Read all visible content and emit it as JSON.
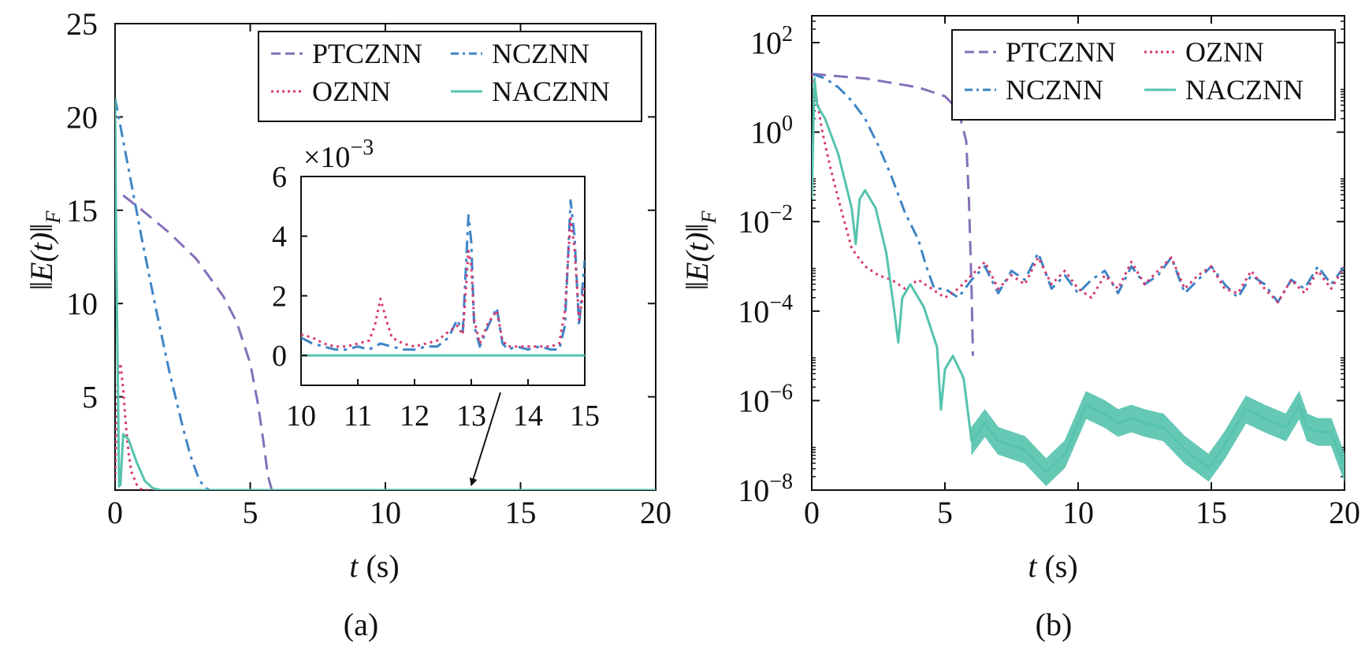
{
  "colors": {
    "PTCZNN": "#8470b8",
    "NCZNN": "#3e84c6",
    "OZNN": "#d63a6e",
    "NACZNN": "#55c3ae",
    "axis": "#111111"
  },
  "chart_data": [
    {
      "panel": "(a)",
      "type": "line",
      "xlabel_italic": "t",
      "xlabel_unit": "(s)",
      "ylabel_inner": "E(t)",
      "ylabel_sub": "F",
      "xlim": [
        0,
        20
      ],
      "ylim": [
        0,
        25
      ],
      "yscale": "linear",
      "xticks": [
        "0",
        "5",
        "10",
        "15",
        "20"
      ],
      "yticks": [
        "5",
        "10",
        "15",
        "20",
        "25"
      ],
      "legend": [
        "PTCZNN",
        "NCZNN",
        "OZNN",
        "NACZNN"
      ],
      "legend_position": "top-right",
      "series": [
        {
          "name": "PTCZNN",
          "style": "dashed",
          "x": [
            0.3,
            1,
            2,
            3,
            4,
            4.5,
            5,
            5.3,
            5.5,
            5.65,
            5.8,
            20
          ],
          "y": [
            15.8,
            15.0,
            13.8,
            12.4,
            10.4,
            9.0,
            6.8,
            4.5,
            2.5,
            0.8,
            0,
            0
          ]
        },
        {
          "name": "NCZNN",
          "style": "dash-dot",
          "x": [
            0,
            0.5,
            1,
            1.5,
            2,
            2.5,
            2.8,
            3.1,
            3.3,
            3.5,
            20
          ],
          "y": [
            21.0,
            17.2,
            13.4,
            9.8,
            6.4,
            3.4,
            1.8,
            0.6,
            0.15,
            0,
            0
          ]
        },
        {
          "name": "OZNN",
          "style": "dotted",
          "x": [
            0,
            0.1,
            0.2,
            0.3,
            0.4,
            0.5,
            0.6,
            0.8,
            1.0,
            20
          ],
          "y": [
            0.5,
            6.0,
            6.8,
            5.4,
            3.5,
            2.0,
            1.0,
            0.3,
            0,
            0
          ]
        },
        {
          "name": "NACZNN",
          "style": "solid",
          "x": [
            0,
            0.05,
            0.12,
            0.15,
            0.2,
            0.3,
            0.5,
            0.8,
            1.1,
            1.4,
            1.7,
            20
          ],
          "y": [
            21.0,
            12.0,
            4.0,
            0.2,
            0.3,
            3.0,
            2.7,
            1.5,
            0.5,
            0.1,
            0,
            0
          ]
        }
      ],
      "inset": {
        "multiplier_prefix": "×10",
        "multiplier_exp": "−3",
        "xlim": [
          10,
          15
        ],
        "ylim": [
          -1.0,
          6.0
        ],
        "xticks": [
          "10",
          "11",
          "12",
          "13",
          "14",
          "15"
        ],
        "yticks": [
          "0",
          "2",
          "4",
          "6"
        ],
        "series": [
          {
            "name": "NCZNN",
            "style": "dash-dot",
            "x": [
              10,
              10.2,
              10.4,
              10.6,
              10.8,
              11,
              11.2,
              11.4,
              11.6,
              11.8,
              12,
              12.2,
              12.4,
              12.6,
              12.75,
              12.85,
              12.95,
              13.0,
              13.05,
              13.15,
              13.3,
              13.45,
              13.55,
              13.65,
              13.8,
              14,
              14.2,
              14.4,
              14.55,
              14.65,
              14.75,
              14.82,
              14.9,
              15
            ],
            "y": [
              0.6,
              0.4,
              0.3,
              0.2,
              0.2,
              0.3,
              0.2,
              0.4,
              0.3,
              0.2,
              0.2,
              0.3,
              0.3,
              0.6,
              1.2,
              0.8,
              4.7,
              3.8,
              1.0,
              0.3,
              1.0,
              1.6,
              0.4,
              0.2,
              0.3,
              0.2,
              0.3,
              0.2,
              0.2,
              1.0,
              5.2,
              4.0,
              1.0,
              3.2
            ]
          },
          {
            "name": "OZNN",
            "style": "dotted",
            "x": [
              10,
              10.2,
              10.4,
              10.6,
              10.8,
              11,
              11.2,
              11.3,
              11.4,
              11.5,
              11.6,
              11.8,
              12,
              12.2,
              12.4,
              12.6,
              12.75,
              12.85,
              12.95,
              13.0,
              13.05,
              13.15,
              13.3,
              13.45,
              13.55,
              13.65,
              13.8,
              14,
              14.2,
              14.4,
              14.55,
              14.65,
              14.75,
              14.82,
              14.9,
              15
            ],
            "y": [
              0.7,
              0.6,
              0.4,
              0.3,
              0.3,
              0.4,
              0.5,
              1.0,
              1.9,
              1.2,
              0.6,
              0.4,
              0.3,
              0.4,
              0.5,
              0.8,
              1.0,
              0.7,
              3.5,
              3.0,
              1.2,
              0.4,
              1.1,
              1.5,
              0.5,
              0.3,
              0.3,
              0.3,
              0.3,
              0.3,
              0.4,
              1.5,
              4.6,
              3.6,
              1.2,
              2.4
            ]
          },
          {
            "name": "NACZNN",
            "style": "solid",
            "x": [
              10,
              15
            ],
            "y": [
              0,
              0
            ]
          }
        ]
      },
      "annotation_arrow": {
        "to_x": 13,
        "to_y": 0
      }
    },
    {
      "panel": "(b)",
      "type": "line",
      "xlabel_italic": "t",
      "xlabel_unit": "(s)",
      "ylabel_inner": "E(t)",
      "ylabel_sub": "F",
      "xlim": [
        0,
        20
      ],
      "ylim_exp": [
        -8,
        2.6
      ],
      "yscale": "log",
      "xticks": [
        "0",
        "5",
        "10",
        "15",
        "20"
      ],
      "ytick_base": "10",
      "ytick_exps": [
        "2",
        "0",
        "−2",
        "−4",
        "−6",
        "−8"
      ],
      "legend": [
        "PTCZNN",
        "OZNN",
        "NCZNN",
        "NACZNN"
      ],
      "legend_position": "top-right",
      "series": [
        {
          "name": "PTCZNN",
          "style": "dashed",
          "x": [
            0,
            1,
            2,
            3,
            4,
            5,
            5.5,
            5.8,
            5.9,
            6.0,
            6.05
          ],
          "y_log10": [
            1.3,
            1.25,
            1.2,
            1.1,
            1.0,
            0.8,
            0.5,
            -0.2,
            -1.5,
            -3.5,
            -5.0
          ]
        },
        {
          "name": "NCZNN",
          "style": "dash-dot",
          "x": [
            0,
            0.5,
            1,
            1.5,
            2,
            2.5,
            3,
            3.5,
            4,
            4.3,
            4.6,
            5,
            5.5,
            6,
            6.5,
            7,
            7.5,
            8,
            8.5,
            9,
            9.5,
            10,
            10.5,
            11,
            11.5,
            12,
            12.5,
            13,
            13.5,
            14,
            14.5,
            15,
            15.5,
            16,
            16.5,
            17,
            17.5,
            18,
            18.5,
            19,
            19.5,
            20
          ],
          "y_log10": [
            1.3,
            1.2,
            1.0,
            0.7,
            0.3,
            -0.3,
            -1.0,
            -1.8,
            -2.4,
            -3.0,
            -3.5,
            -3.5,
            -3.7,
            -3.3,
            -3.0,
            -3.6,
            -3.1,
            -3.3,
            -2.7,
            -3.5,
            -3.2,
            -3.6,
            -3.3,
            -3.1,
            -3.6,
            -3.0,
            -3.4,
            -3.2,
            -2.8,
            -3.6,
            -3.3,
            -3.0,
            -3.4,
            -3.7,
            -3.2,
            -3.4,
            -3.8,
            -3.3,
            -3.5,
            -3.0,
            -3.4,
            -3.0
          ]
        },
        {
          "name": "OZNN",
          "style": "dotted",
          "x": [
            0,
            0.2,
            0.4,
            0.7,
            1,
            1.5,
            2,
            2.5,
            3,
            3.5,
            4,
            4.5,
            5,
            5.5,
            6,
            6.5,
            7,
            7.5,
            8,
            8.5,
            9,
            9.5,
            10,
            10.5,
            11,
            11.5,
            12,
            12.5,
            13,
            13.5,
            14,
            14.5,
            15,
            15.5,
            16,
            16.5,
            17,
            17.5,
            18,
            18.5,
            19,
            19.5,
            20
          ],
          "y_log10": [
            1.3,
            0.7,
            0.0,
            -0.8,
            -1.5,
            -2.6,
            -3.0,
            -3.2,
            -3.3,
            -3.5,
            -3.3,
            -3.5,
            -3.7,
            -3.5,
            -3.2,
            -2.9,
            -3.5,
            -3.2,
            -3.4,
            -2.8,
            -3.4,
            -3.1,
            -3.5,
            -3.7,
            -3.2,
            -3.5,
            -2.9,
            -3.4,
            -3.1,
            -2.8,
            -3.5,
            -3.2,
            -3.0,
            -3.5,
            -3.6,
            -3.1,
            -3.5,
            -3.8,
            -3.3,
            -3.6,
            -3.1,
            -3.5,
            -3.0
          ]
        },
        {
          "name": "NACZNN",
          "style": "solid",
          "x": [
            0,
            0.1,
            0.2,
            0.5,
            1,
            1.5,
            1.65,
            1.8,
            2.0,
            2.4,
            2.8,
            3.1,
            3.25,
            3.4,
            3.7,
            4.2,
            4.7,
            4.85,
            5.0,
            5.3,
            5.7,
            6.0,
            6.5,
            7,
            8,
            8.8,
            9.5,
            10.3,
            11,
            11.5,
            12,
            12.5,
            13.2,
            14,
            14.9,
            15.5,
            16.3,
            17,
            17.8,
            18.3,
            18.6,
            19,
            19.5,
            20
          ],
          "y_log10": [
            -1.5,
            1.2,
            0.6,
            0.3,
            -0.5,
            -1.7,
            -2.5,
            -1.5,
            -1.3,
            -1.7,
            -2.7,
            -4.0,
            -4.7,
            -3.7,
            -3.4,
            -3.9,
            -4.8,
            -6.2,
            -5.3,
            -5.0,
            -5.5,
            -6.9,
            -6.5,
            -6.9,
            -7.1,
            -7.6,
            -7.2,
            -6.1,
            -6.3,
            -6.5,
            -6.4,
            -6.5,
            -6.6,
            -7.1,
            -7.5,
            -7.0,
            -6.2,
            -6.4,
            -6.6,
            -6.1,
            -6.6,
            -6.7,
            -6.7,
            -7.5
          ]
        }
      ],
      "band": {
        "name": "NACZNN",
        "x_from": 6.0,
        "thickness_log10": 0.6
      }
    }
  ]
}
